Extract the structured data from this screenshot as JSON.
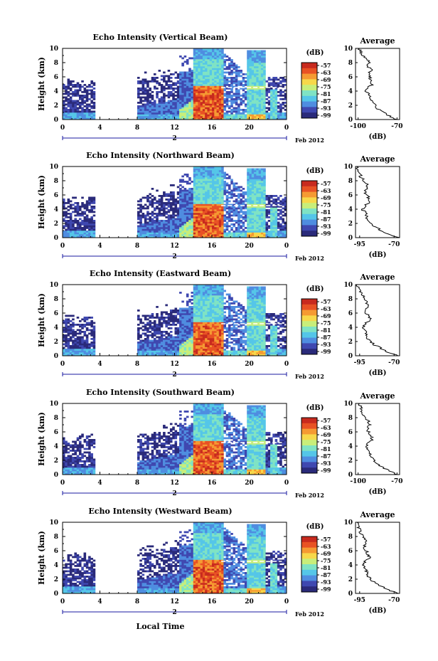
{
  "chart_data": [
    {
      "type": "heatmap",
      "title": "Echo Intensity (Vertical Beam)",
      "ylabel": "Height (km)",
      "xlabel": "",
      "x_ticks": [
        "0",
        "4",
        "8",
        "12",
        "16",
        "20",
        "0"
      ],
      "y_ticks": [
        "0",
        "2",
        "4",
        "6",
        "8",
        "10"
      ],
      "xlim": [
        0,
        24
      ],
      "ylim": [
        0,
        10
      ],
      "date_label": "2",
      "month_label": "Feb 2012",
      "colorbar": {
        "unit": "(dB)",
        "ticks": [
          "-57",
          "-63",
          "-69",
          "-75",
          "-81",
          "-87",
          "-93",
          "-99"
        ]
      },
      "average": {
        "title": "Average",
        "xlabel": "(dB)",
        "x_ticks": [
          "-100",
          "-70"
        ],
        "xlim": [
          -102,
          -68
        ],
        "heights": [
          0,
          0.5,
          1,
          1.5,
          2,
          2.5,
          3,
          3.5,
          4,
          4.5,
          5,
          5.5,
          6,
          6.5,
          7,
          7.5,
          8,
          8.5,
          9,
          9.5,
          10
        ],
        "values": [
          -70,
          -76,
          -80,
          -85,
          -87,
          -89,
          -90,
          -91,
          -94,
          -92,
          -89,
          -90,
          -91,
          -92,
          -90,
          -93,
          -91,
          -94,
          -96,
          -98,
          -99
        ]
      }
    },
    {
      "type": "heatmap",
      "title": "Echo Intensity (Northward Beam)",
      "ylabel": "Height (km)",
      "xlabel": "",
      "x_ticks": [
        "0",
        "4",
        "8",
        "12",
        "16",
        "20",
        "0"
      ],
      "y_ticks": [
        "0",
        "2",
        "4",
        "6",
        "8",
        "10"
      ],
      "xlim": [
        0,
        24
      ],
      "ylim": [
        0,
        10
      ],
      "date_label": "2",
      "month_label": "Feb 2012",
      "colorbar": {
        "unit": "(dB)",
        "ticks": [
          "-57",
          "-63",
          "-69",
          "-75",
          "-81",
          "-87",
          "-93",
          "-99"
        ]
      },
      "average": {
        "title": "Average",
        "xlabel": "(dB)",
        "x_ticks": [
          "-95",
          "-70"
        ],
        "xlim": [
          -98,
          -66
        ],
        "heights": [
          0,
          0.5,
          1,
          1.5,
          2,
          2.5,
          3,
          3.5,
          4,
          4.5,
          5,
          5.5,
          6,
          6.5,
          7,
          7.5,
          8,
          8.5,
          9,
          9.5,
          10
        ],
        "values": [
          -67,
          -74,
          -79,
          -84,
          -87,
          -89,
          -90,
          -91,
          -93,
          -91,
          -87,
          -88,
          -90,
          -91,
          -89,
          -90,
          -92,
          -94,
          -95,
          -96,
          -97
        ]
      }
    },
    {
      "type": "heatmap",
      "title": "Echo Intensity (Eastward Beam)",
      "ylabel": "Height (km)",
      "xlabel": "",
      "x_ticks": [
        "0",
        "4",
        "8",
        "12",
        "16",
        "20",
        "0"
      ],
      "y_ticks": [
        "0",
        "2",
        "4",
        "6",
        "8",
        "10"
      ],
      "xlim": [
        0,
        24
      ],
      "ylim": [
        0,
        10
      ],
      "date_label": "2",
      "month_label": "Feb 2012",
      "colorbar": {
        "unit": "(dB)",
        "ticks": [
          "-57",
          "-63",
          "-69",
          "-75",
          "-81",
          "-87",
          "-93",
          "-99"
        ]
      },
      "average": {
        "title": "Average",
        "xlabel": "(dB)",
        "x_ticks": [
          "-95",
          "-70"
        ],
        "xlim": [
          -98,
          -66
        ],
        "heights": [
          0,
          0.5,
          1,
          1.5,
          2,
          2.5,
          3,
          3.5,
          4,
          4.5,
          5,
          5.5,
          6,
          6.5,
          7,
          7.5,
          8,
          8.5,
          9,
          9.5,
          10
        ],
        "values": [
          -67,
          -74,
          -79,
          -84,
          -87,
          -89,
          -90,
          -91,
          -93,
          -91,
          -87,
          -88,
          -90,
          -91,
          -89,
          -90,
          -91,
          -93,
          -95,
          -96,
          -97
        ]
      }
    },
    {
      "type": "heatmap",
      "title": "Echo Intensity (Southward Beam)",
      "ylabel": "Height (km)",
      "xlabel": "",
      "x_ticks": [
        "0",
        "4",
        "8",
        "12",
        "16",
        "20",
        "0"
      ],
      "y_ticks": [
        "0",
        "2",
        "4",
        "6",
        "8",
        "10"
      ],
      "xlim": [
        0,
        24
      ],
      "ylim": [
        0,
        10
      ],
      "date_label": "2",
      "month_label": "Feb 2012",
      "colorbar": {
        "unit": "(dB)",
        "ticks": [
          "-57",
          "-63",
          "-69",
          "-75",
          "-81",
          "-87",
          "-93",
          "-99"
        ]
      },
      "average": {
        "title": "Average",
        "xlabel": "(dB)",
        "x_ticks": [
          "-100",
          "-70"
        ],
        "xlim": [
          -102,
          -68
        ],
        "heights": [
          0,
          0.5,
          1,
          1.5,
          2,
          2.5,
          3,
          3.5,
          4,
          4.5,
          5,
          5.5,
          6,
          6.5,
          7,
          7.5,
          8,
          8.5,
          9,
          9.5,
          10
        ],
        "values": [
          -70,
          -76,
          -81,
          -86,
          -88,
          -90,
          -91,
          -92,
          -94,
          -92,
          -89,
          -90,
          -92,
          -93,
          -91,
          -92,
          -94,
          -96,
          -97,
          -98,
          -99
        ]
      }
    },
    {
      "type": "heatmap",
      "title": "Echo Intensity (Westward Beam)",
      "ylabel": "Height (km)",
      "xlabel": "Local Time",
      "x_ticks": [
        "0",
        "4",
        "8",
        "12",
        "16",
        "20",
        "0"
      ],
      "y_ticks": [
        "0",
        "2",
        "4",
        "6",
        "8",
        "10"
      ],
      "xlim": [
        0,
        24
      ],
      "ylim": [
        0,
        10
      ],
      "date_label": "2",
      "month_label": "Feb 2012",
      "colorbar": {
        "unit": "(dB)",
        "ticks": [
          "-57",
          "-63",
          "-69",
          "-75",
          "-81",
          "-87",
          "-93",
          "-99"
        ]
      },
      "average": {
        "title": "Average",
        "xlabel": "(dB)",
        "x_ticks": [
          "-95",
          "-70"
        ],
        "xlim": [
          -98,
          -66
        ],
        "heights": [
          0,
          0.5,
          1,
          1.5,
          2,
          2.5,
          3,
          3.5,
          4,
          4.5,
          5,
          5.5,
          6,
          6.5,
          7,
          7.5,
          8,
          8.5,
          9,
          9.5,
          10
        ],
        "values": [
          -67,
          -74,
          -79,
          -84,
          -87,
          -89,
          -90,
          -91,
          -93,
          -91,
          -88,
          -89,
          -90,
          -92,
          -90,
          -91,
          -92,
          -94,
          -95,
          -96,
          -97
        ]
      }
    }
  ],
  "colors": {
    "scale": [
      "#2a2a7a",
      "#3f48b0",
      "#4f8de0",
      "#55c6e8",
      "#7fe3c4",
      "#c8ee7a",
      "#f7d84a",
      "#f59a32",
      "#e85224",
      "#c82a1e"
    ],
    "axis": "#000000",
    "timeline": "#1a1aa0"
  }
}
